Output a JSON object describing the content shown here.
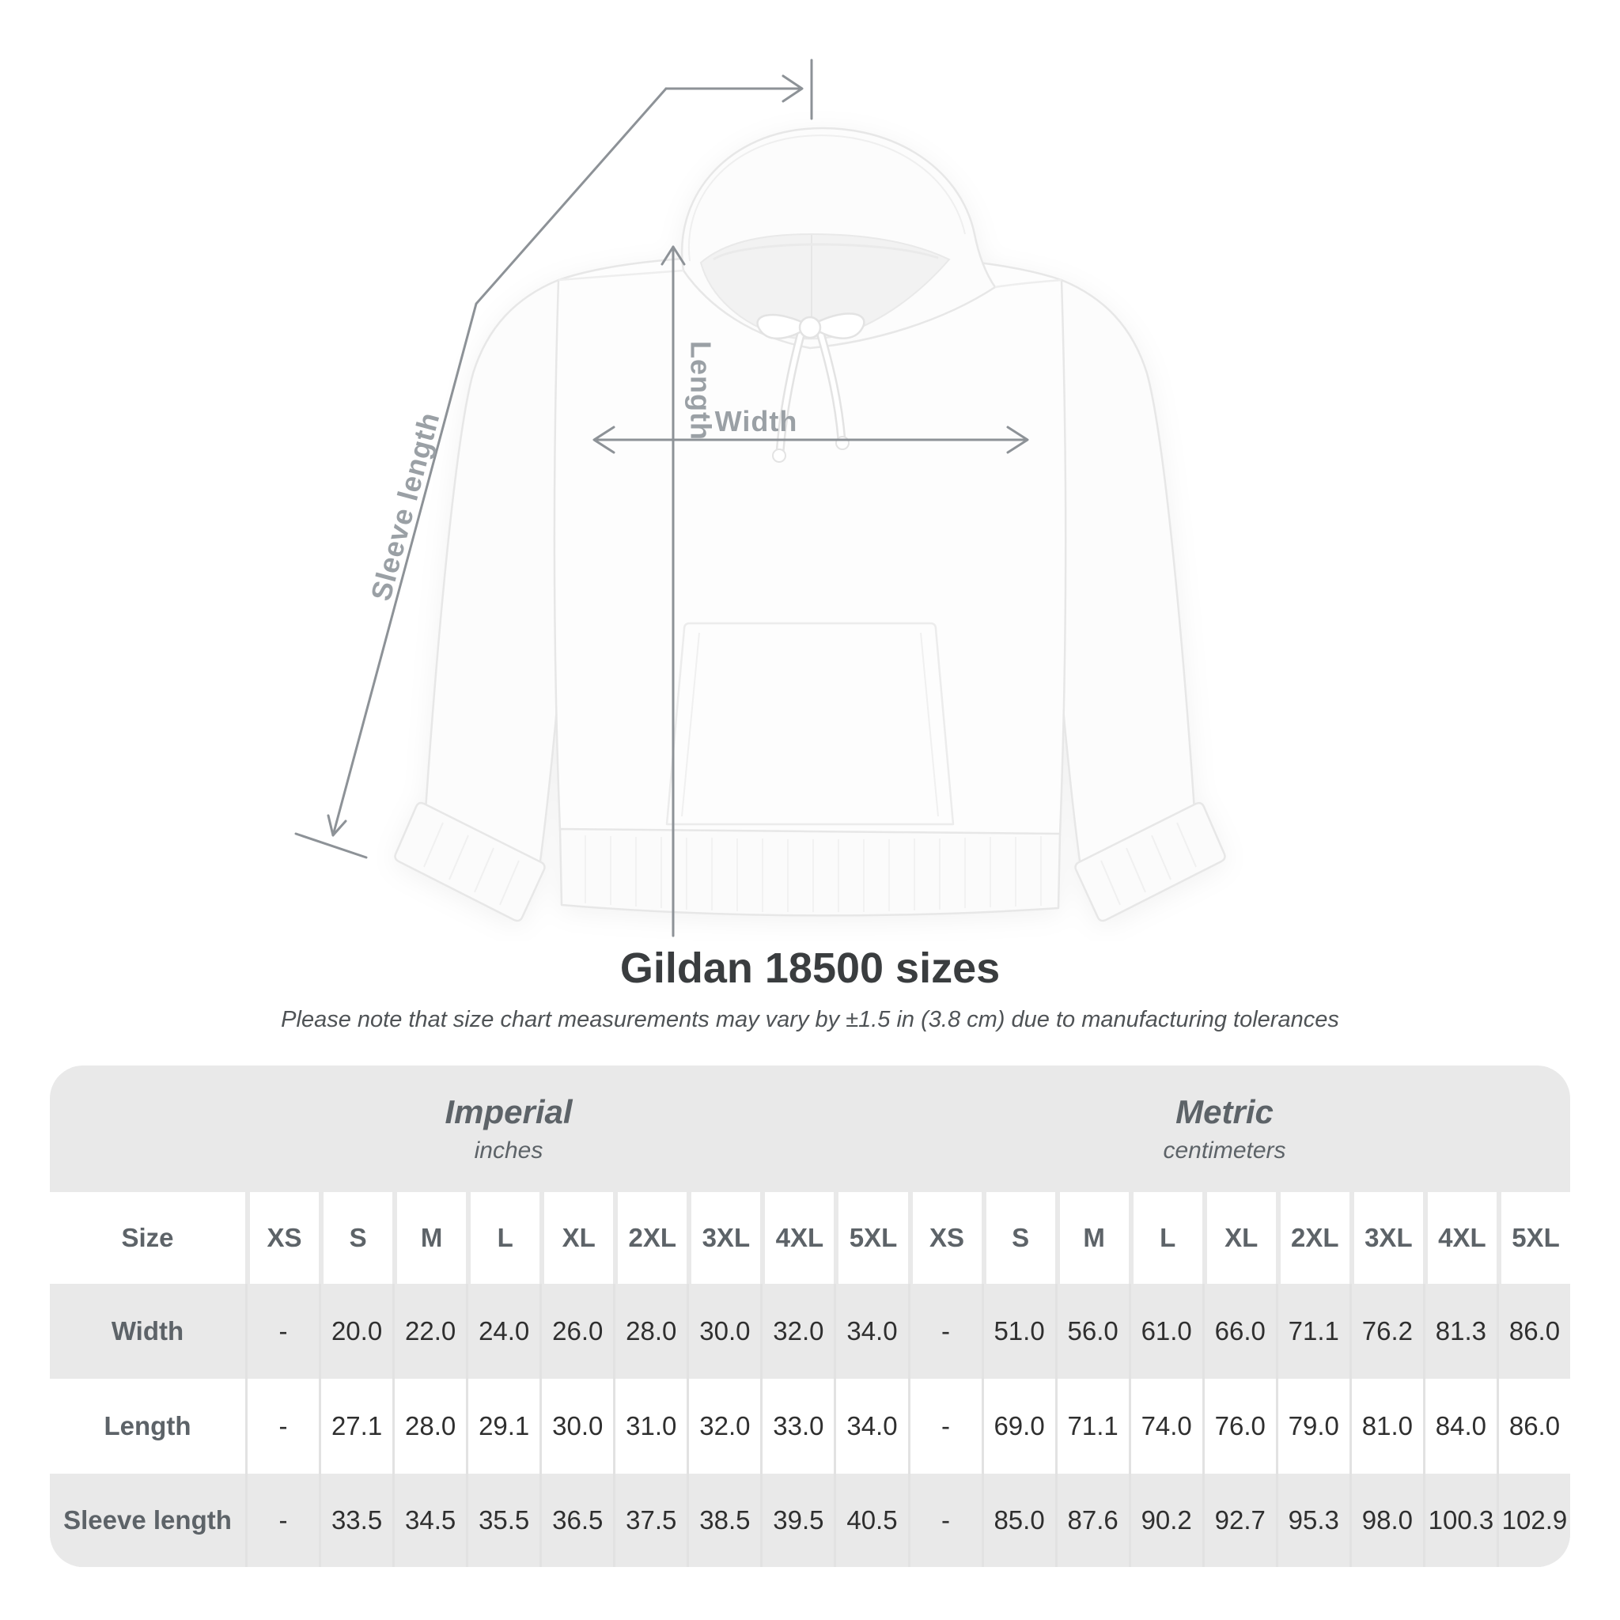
{
  "header": {
    "title": "Gildan 18500 sizes",
    "subtitle": "Please note that size chart measurements may vary by ±1.5 in (3.8 cm) due to manufacturing tolerances"
  },
  "figure": {
    "product": "white pullover hoodie",
    "dimension_labels": {
      "sleeve": "Sleeve length",
      "length": "Length",
      "width": "Width"
    },
    "colors": {
      "dimension_line": "#8d9297",
      "dimension_label": "#9aa0a5",
      "table_background": "#e9e9e9",
      "cell_separator": "#e2e2e2"
    }
  },
  "chart_data": {
    "type": "table",
    "title": "Gildan 18500 sizes",
    "row_header": "Size",
    "groups": [
      {
        "label": "Imperial",
        "unit": "inches",
        "sizes": [
          "XS",
          "S",
          "M",
          "L",
          "XL",
          "2XL",
          "3XL",
          "4XL",
          "5XL"
        ]
      },
      {
        "label": "Metric",
        "unit": "centimeters",
        "sizes": [
          "XS",
          "S",
          "M",
          "L",
          "XL",
          "2XL",
          "3XL",
          "4XL",
          "5XL"
        ]
      }
    ],
    "rows": [
      {
        "label": "Width",
        "imperial": [
          "-",
          "20.0",
          "22.0",
          "24.0",
          "26.0",
          "28.0",
          "30.0",
          "32.0",
          "34.0"
        ],
        "metric": [
          "-",
          "51.0",
          "56.0",
          "61.0",
          "66.0",
          "71.1",
          "76.2",
          "81.3",
          "86.0"
        ]
      },
      {
        "label": "Length",
        "imperial": [
          "-",
          "27.1",
          "28.0",
          "29.1",
          "30.0",
          "31.0",
          "32.0",
          "33.0",
          "34.0"
        ],
        "metric": [
          "-",
          "69.0",
          "71.1",
          "74.0",
          "76.0",
          "79.0",
          "81.0",
          "84.0",
          "86.0"
        ]
      },
      {
        "label": "Sleeve length",
        "imperial": [
          "-",
          "33.5",
          "34.5",
          "35.5",
          "36.5",
          "37.5",
          "38.5",
          "39.5",
          "40.5"
        ],
        "metric": [
          "-",
          "85.0",
          "87.6",
          "90.2",
          "92.7",
          "95.3",
          "98.0",
          "100.3",
          "102.9"
        ]
      }
    ]
  }
}
